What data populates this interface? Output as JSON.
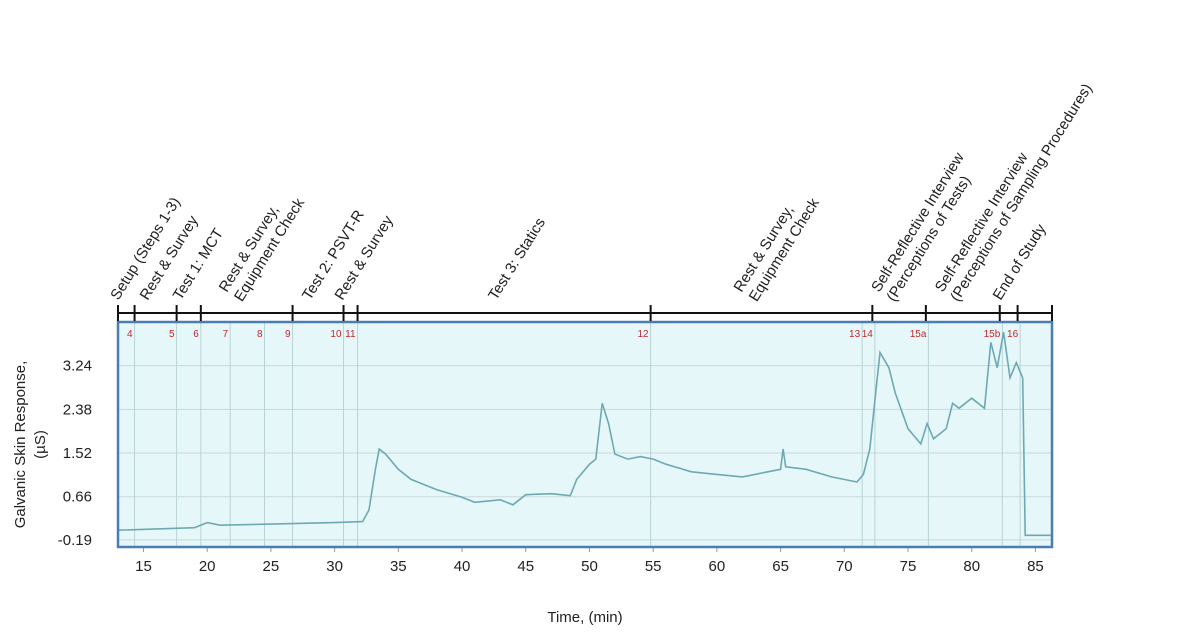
{
  "chart_data": {
    "type": "line",
    "xlabel": "Time, (min)",
    "ylabel": [
      "Galvanic Skin Response,",
      "(µS)"
    ],
    "xlim": [
      13,
      86.3
    ],
    "ylim": [
      -0.33,
      4.1
    ],
    "xticks": [
      15,
      20,
      25,
      30,
      35,
      40,
      45,
      50,
      55,
      60,
      65,
      70,
      75,
      80,
      85
    ],
    "yticks": [
      -0.19,
      0.66,
      1.52,
      2.38,
      3.24
    ],
    "grid": true,
    "color": "#6ea9b3",
    "x": [
      13,
      19,
      20,
      21,
      25,
      30,
      32.2,
      32.7,
      33.2,
      33.5,
      34,
      35,
      36,
      38,
      40,
      41,
      43,
      44,
      45,
      47,
      48.5,
      49,
      50,
      50.5,
      51,
      51.5,
      52,
      53,
      54,
      55,
      56,
      58,
      60,
      62,
      64,
      65,
      65.2,
      65.4,
      67,
      69,
      71,
      71.5,
      72,
      72.5,
      72.8,
      73.5,
      74,
      75,
      76,
      76.5,
      77,
      78,
      78.5,
      79,
      80,
      81,
      81.5,
      82,
      82.5,
      83,
      83.5,
      84,
      84.2,
      86.2
    ],
    "values": [
      0.0,
      0.05,
      0.15,
      0.1,
      0.12,
      0.15,
      0.17,
      0.4,
      1.2,
      1.6,
      1.5,
      1.2,
      1.0,
      0.8,
      0.65,
      0.55,
      0.6,
      0.5,
      0.7,
      0.72,
      0.68,
      1.0,
      1.3,
      1.4,
      2.5,
      2.1,
      1.5,
      1.4,
      1.45,
      1.4,
      1.3,
      1.15,
      1.1,
      1.05,
      1.15,
      1.2,
      1.6,
      1.25,
      1.2,
      1.05,
      0.95,
      1.1,
      1.6,
      2.8,
      3.5,
      3.2,
      2.7,
      2.0,
      1.7,
      2.1,
      1.8,
      2.0,
      2.5,
      2.4,
      2.6,
      2.4,
      3.7,
      3.2,
      3.9,
      3.0,
      3.3,
      3.0,
      -0.1,
      -0.1
    ],
    "events": [
      {
        "label": "4",
        "x": 14.3
      },
      {
        "label": "5",
        "x": 17.6
      },
      {
        "label": "6",
        "x": 19.5
      },
      {
        "label": "7",
        "x": 21.8
      },
      {
        "label": "8",
        "x": 24.5
      },
      {
        "label": "9",
        "x": 26.7
      },
      {
        "label": "10",
        "x": 30.7
      },
      {
        "label": "11",
        "x": 31.8
      },
      {
        "label": "12",
        "x": 54.8
      },
      {
        "label": "13",
        "x": 71.4
      },
      {
        "label": "14",
        "x": 72.4
      },
      {
        "label": "15a",
        "x": 76.6
      },
      {
        "label": "15b",
        "x": 82.4
      },
      {
        "label": "16",
        "x": 83.8
      }
    ],
    "phase_bounds": [
      13,
      14.3,
      17.6,
      19.5,
      26.7,
      30.7,
      31.8,
      54.8,
      72.2,
      76.4,
      82.2,
      83.6,
      86.3
    ],
    "phases": [
      [
        "Setup (Steps 1-3)"
      ],
      [
        "Rest & Survey"
      ],
      [
        "Test 1: MCT"
      ],
      [
        "Rest & Survey,",
        "Equipment Check"
      ],
      [
        "Test 2: PSVT-R"
      ],
      [
        "Rest & Survey"
      ],
      [
        "Test 3: Statics"
      ],
      [
        "Rest & Survey,",
        "Equipment Check"
      ],
      [
        "Self-Reflective Interview",
        "(Perceptions of Tests)"
      ],
      [
        "Self-Reflective Interview",
        "(Perceptions of Sampling Procedures)"
      ],
      [
        "End of Study"
      ]
    ]
  }
}
